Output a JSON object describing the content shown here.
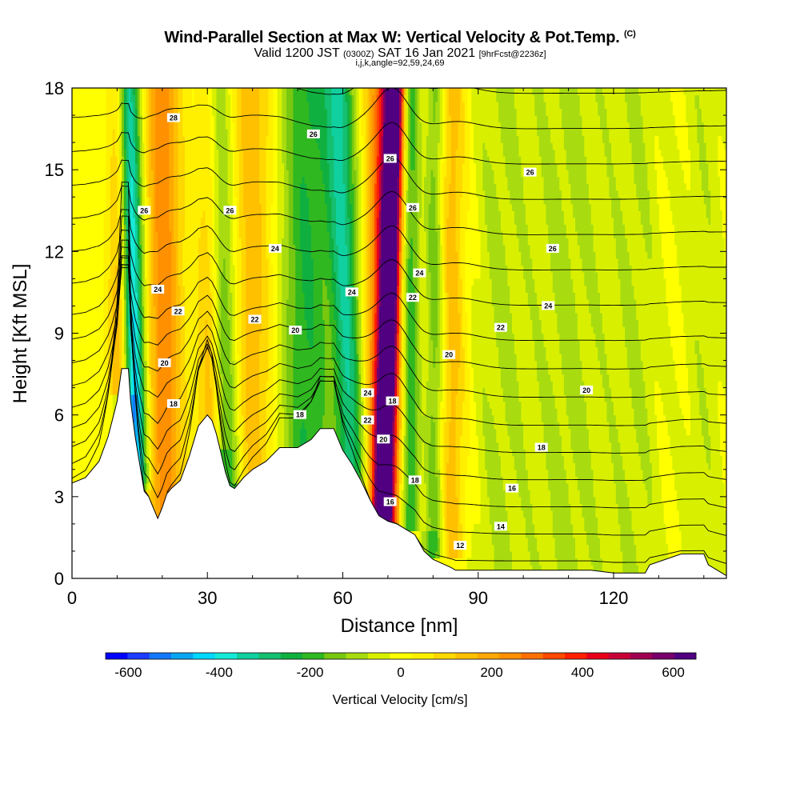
{
  "chart_data": {
    "type": "heatmap",
    "title": "Wind-Parallel Section at Max W: Vertical Velocity & Pot.Temp.",
    "title_mark": "(C)",
    "subtitle_main_a": "Valid 1200 JST",
    "subtitle_small_a": "(0300Z)",
    "subtitle_main_b": "SAT 16 Jan 2021",
    "subtitle_small_b": "[9hrFcst@2236z]",
    "subtitle2": "i,j,k,angle=92,59,24,69",
    "xlabel": "Distance [nm]",
    "ylabel": "Height [Kft MSL]",
    "xlim": [
      0,
      145
    ],
    "ylim": [
      0,
      18
    ],
    "x_ticks": [
      "0",
      "30",
      "60",
      "90",
      "120"
    ],
    "x_tick_values": [
      0,
      30,
      60,
      90,
      120
    ],
    "y_ticks": [
      "0",
      "3",
      "6",
      "9",
      "12",
      "15",
      "18"
    ],
    "y_tick_values": [
      0,
      3,
      6,
      9,
      12,
      15,
      18
    ],
    "colorbar": {
      "label": "Vertical Velocity [cm/s]",
      "tick_labels": [
        "-600",
        "-400",
        "-200",
        "0",
        "200",
        "400",
        "600"
      ],
      "tick_values": [
        -600,
        -400,
        -200,
        0,
        200,
        400,
        600
      ],
      "range": [
        -650,
        650
      ],
      "colors": [
        "#0000ff",
        "#1a3dff",
        "#1478ff",
        "#0aa6f0",
        "#00d8ff",
        "#18e8d8",
        "#10d0a0",
        "#14c070",
        "#10b040",
        "#30b820",
        "#78c810",
        "#a8dc10",
        "#d8f000",
        "#ffff00",
        "#fff000",
        "#ffd800",
        "#ffc000",
        "#ffa800",
        "#ff9000",
        "#ff7000",
        "#ff4800",
        "#ff2000",
        "#e8001a",
        "#c80038",
        "#a00050",
        "#780068",
        "#500080"
      ]
    },
    "terrain_profile": [
      [
        0,
        3.5
      ],
      [
        3,
        3.7
      ],
      [
        6,
        4.3
      ],
      [
        8,
        5.2
      ],
      [
        10,
        6.5
      ],
      [
        11,
        7.7
      ],
      [
        12.5,
        7.7
      ],
      [
        13,
        6.5
      ],
      [
        14,
        5.2
      ],
      [
        15,
        4.2
      ],
      [
        16,
        3.2
      ],
      [
        17,
        3.0
      ],
      [
        18,
        2.6
      ],
      [
        19,
        2.2
      ],
      [
        20,
        2.6
      ],
      [
        21,
        3.1
      ],
      [
        22,
        3.3
      ],
      [
        24,
        3.6
      ],
      [
        26,
        4.5
      ],
      [
        28,
        5.6
      ],
      [
        30,
        6.0
      ],
      [
        31,
        5.8
      ],
      [
        32,
        5.3
      ],
      [
        33,
        4.6
      ],
      [
        34,
        3.9
      ],
      [
        35,
        3.4
      ],
      [
        36,
        3.3
      ],
      [
        38,
        3.7
      ],
      [
        40,
        4.0
      ],
      [
        43,
        4.3
      ],
      [
        46,
        4.8
      ],
      [
        50,
        4.8
      ],
      [
        53,
        5.1
      ],
      [
        55,
        5.5
      ],
      [
        58,
        5.5
      ],
      [
        60,
        4.7
      ],
      [
        62,
        4.2
      ],
      [
        64,
        3.6
      ],
      [
        66,
        2.9
      ],
      [
        67,
        2.6
      ],
      [
        68,
        2.3
      ],
      [
        70,
        2.1
      ],
      [
        72,
        2.0
      ],
      [
        74,
        1.8
      ],
      [
        76,
        1.6
      ],
      [
        78,
        1.0
      ],
      [
        80,
        0.7
      ],
      [
        84,
        0.4
      ],
      [
        85,
        0.3
      ],
      [
        95,
        0.3
      ],
      [
        110,
        0.3
      ],
      [
        115,
        0.3
      ],
      [
        120,
        0.2
      ],
      [
        127,
        0.2
      ],
      [
        128,
        0.5
      ],
      [
        135,
        0.9
      ],
      [
        140,
        0.9
      ],
      [
        141,
        0.5
      ],
      [
        143,
        0.3
      ],
      [
        145,
        0.1
      ]
    ],
    "velocity_bands": [
      {
        "center_bottom": 13,
        "center_top": 13,
        "lean": 0,
        "w": -150,
        "width": 2.8,
        "bottom_height": 4.2
      },
      {
        "center_bottom": 15,
        "center_top": 12,
        "lean": 0,
        "w": -380,
        "width": 2.4,
        "bottom_height": 4.0
      },
      {
        "center_bottom": 11,
        "center_top": 11,
        "lean": 0,
        "w": 280,
        "width": 2.5,
        "bottom_height": 7.5
      },
      {
        "center_bottom": 21,
        "center_top": 20,
        "lean": 0,
        "w": 250,
        "width": 4.0,
        "bottom_height": 3.0
      },
      {
        "center_bottom": 31,
        "center_top": 31,
        "lean": 0,
        "w": 200,
        "width": 3.0,
        "bottom_height": 5.5
      },
      {
        "center_bottom": 35,
        "center_top": 32,
        "lean": 0,
        "w": -260,
        "width": 3.0,
        "bottom_height": 3.4
      },
      {
        "center_bottom": 40,
        "center_top": 40,
        "lean": 0,
        "w": 150,
        "width": 5.0,
        "bottom_height": 4.2
      },
      {
        "center_bottom": 52,
        "center_top": 52,
        "lean": 0,
        "w": -220,
        "width": 6.0,
        "bottom_height": 4.8
      },
      {
        "center_bottom": 63,
        "center_top": 59,
        "lean": 0,
        "w": -300,
        "width": 3.2,
        "bottom_height": 3.0
      },
      {
        "center_bottom": 68.5,
        "center_top": 71.5,
        "lean": 0,
        "w": 600,
        "width": 2.0,
        "bottom_height": 2.0
      },
      {
        "center_bottom": 69,
        "center_top": 70,
        "lean": 0,
        "w": 420,
        "width": 4.0,
        "bottom_height": 2.2
      },
      {
        "center_bottom": 75,
        "center_top": 75,
        "lean": 0,
        "w": -280,
        "width": 2.5,
        "bottom_height": 2.5
      },
      {
        "center_bottom": 78,
        "center_top": 78,
        "lean": 0,
        "w": 120,
        "width": 2.5,
        "bottom_height": 2.5
      },
      {
        "center_bottom": 80,
        "center_top": 80,
        "lean": 0,
        "w": -220,
        "width": 2.5,
        "bottom_height": 1.5
      },
      {
        "center_bottom": 84,
        "center_top": 84,
        "lean": 0,
        "w": 160,
        "width": 3.0,
        "bottom_height": 1.5
      },
      {
        "center_bottom": 95,
        "center_top": 95,
        "lean": 0,
        "w": -80,
        "width": 6.0,
        "bottom_height": 0.5
      },
      {
        "center_bottom": 110,
        "center_top": 110,
        "lean": 0,
        "w": -90,
        "width": 8.0,
        "bottom_height": 0.5
      },
      {
        "center_bottom": 125,
        "center_top": 125,
        "lean": 0,
        "w": -70,
        "width": 6.0,
        "bottom_height": 0.5
      },
      {
        "center_bottom": 140,
        "center_top": 140,
        "lean": 0,
        "w": -60,
        "width": 5.0,
        "bottom_height": 0.5
      }
    ],
    "contour_values": [
      12,
      14,
      16,
      18,
      20,
      22,
      24,
      26,
      28
    ],
    "contour_labels": [
      {
        "text": "28",
        "x": 22.5,
        "y": 16.9
      },
      {
        "text": "26",
        "x": 53.5,
        "y": 16.3
      },
      {
        "text": "26",
        "x": 70.5,
        "y": 15.4
      },
      {
        "text": "26",
        "x": 101.5,
        "y": 14.9
      },
      {
        "text": "26",
        "x": 16,
        "y": 13.5
      },
      {
        "text": "26",
        "x": 35,
        "y": 13.5
      },
      {
        "text": "26",
        "x": 75.5,
        "y": 13.6
      },
      {
        "text": "26",
        "x": 106.5,
        "y": 12.1
      },
      {
        "text": "24",
        "x": 45,
        "y": 12.1
      },
      {
        "text": "24",
        "x": 77,
        "y": 11.2
      },
      {
        "text": "24",
        "x": 19,
        "y": 10.6
      },
      {
        "text": "24",
        "x": 62,
        "y": 10.5
      },
      {
        "text": "24",
        "x": 105.5,
        "y": 10.0
      },
      {
        "text": "22",
        "x": 75.5,
        "y": 10.3
      },
      {
        "text": "22",
        "x": 23.5,
        "y": 9.8
      },
      {
        "text": "22",
        "x": 40.5,
        "y": 9.5
      },
      {
        "text": "22",
        "x": 95,
        "y": 9.2
      },
      {
        "text": "20",
        "x": 49.5,
        "y": 9.1
      },
      {
        "text": "20",
        "x": 83.5,
        "y": 8.2
      },
      {
        "text": "20",
        "x": 20.5,
        "y": 7.9
      },
      {
        "text": "20",
        "x": 114,
        "y": 6.9
      },
      {
        "text": "24",
        "x": 65.5,
        "y": 6.8
      },
      {
        "text": "18",
        "x": 71,
        "y": 6.5
      },
      {
        "text": "18",
        "x": 22.5,
        "y": 6.4
      },
      {
        "text": "18",
        "x": 50.5,
        "y": 6.0
      },
      {
        "text": "22",
        "x": 65.5,
        "y": 5.8
      },
      {
        "text": "18",
        "x": 104,
        "y": 4.8
      },
      {
        "text": "20",
        "x": 69,
        "y": 5.1
      },
      {
        "text": "18",
        "x": 76,
        "y": 3.6
      },
      {
        "text": "16",
        "x": 97.5,
        "y": 3.3
      },
      {
        "text": "16",
        "x": 70.5,
        "y": 2.8
      },
      {
        "text": "14",
        "x": 95,
        "y": 1.9
      },
      {
        "text": "12",
        "x": 86,
        "y": 1.2
      }
    ]
  }
}
